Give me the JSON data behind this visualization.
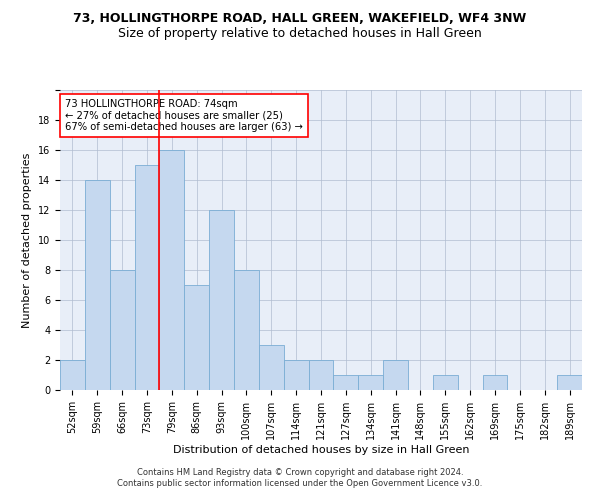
{
  "title": "73, HOLLINGTHORPE ROAD, HALL GREEN, WAKEFIELD, WF4 3NW",
  "subtitle": "Size of property relative to detached houses in Hall Green",
  "xlabel": "Distribution of detached houses by size in Hall Green",
  "ylabel": "Number of detached properties",
  "bar_labels": [
    "52sqm",
    "59sqm",
    "66sqm",
    "73sqm",
    "79sqm",
    "86sqm",
    "93sqm",
    "100sqm",
    "107sqm",
    "114sqm",
    "121sqm",
    "127sqm",
    "134sqm",
    "141sqm",
    "148sqm",
    "155sqm",
    "162sqm",
    "169sqm",
    "175sqm",
    "182sqm",
    "189sqm"
  ],
  "bar_values": [
    2,
    14,
    8,
    15,
    16,
    7,
    12,
    8,
    3,
    2,
    2,
    1,
    1,
    2,
    0,
    1,
    0,
    1,
    0,
    0,
    1
  ],
  "bar_color": "#c5d8ef",
  "bar_edge_color": "#7aadd4",
  "highlight_line_index": 3,
  "highlight_color": "red",
  "annotation_text": "73 HOLLINGTHORPE ROAD: 74sqm\n← 27% of detached houses are smaller (25)\n67% of semi-detached houses are larger (63) →",
  "annotation_box_color": "white",
  "annotation_box_edge": "red",
  "ylim": [
    0,
    20
  ],
  "yticks": [
    0,
    2,
    4,
    6,
    8,
    10,
    12,
    14,
    16,
    18,
    20
  ],
  "bg_color": "#e8eef8",
  "footer": "Contains HM Land Registry data © Crown copyright and database right 2024.\nContains public sector information licensed under the Open Government Licence v3.0.",
  "title_fontsize": 9,
  "subtitle_fontsize": 9,
  "ylabel_fontsize": 8,
  "xlabel_fontsize": 8,
  "tick_fontsize": 7,
  "footer_fontsize": 6
}
